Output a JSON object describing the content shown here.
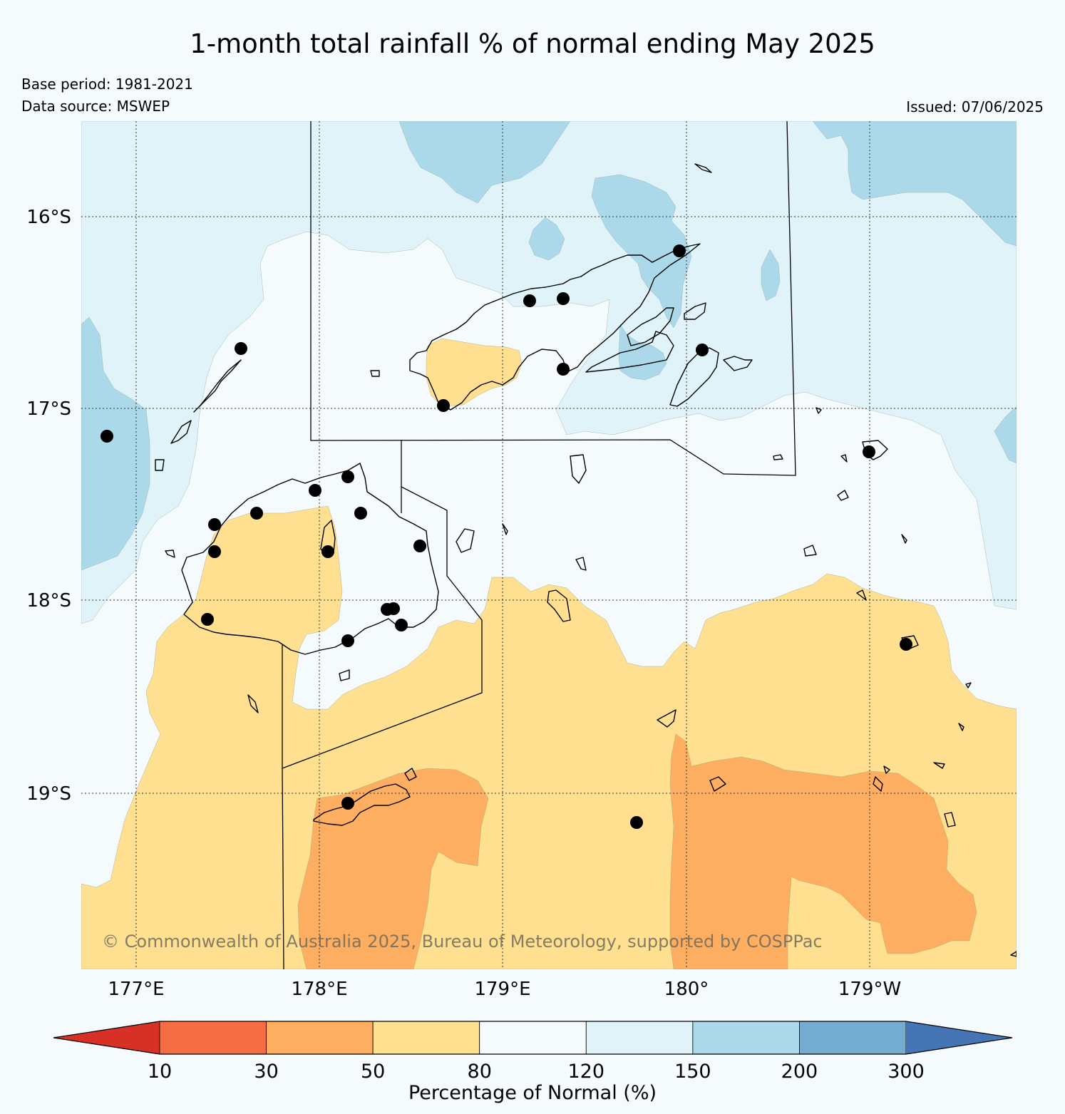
{
  "title": "1-month total rainfall % of normal ending May 2025",
  "base_period": "Base period: 1981-2021",
  "data_source": "Data source: MSWEP",
  "issued": "Issued: 07/06/2025",
  "copyright": "© Commonwealth of Australia 2025, Bureau of Meteorology, supported by COSPPac",
  "latitude_labels": [
    "16°S",
    "17°S",
    "18°S",
    "19°S"
  ],
  "longitude_labels": [
    "177°E",
    "178°E",
    "179°E",
    "180°",
    "179°W"
  ],
  "colorbar": {
    "title": "Percentage of Normal (%)",
    "tick_labels": [
      "10",
      "30",
      "50",
      "80",
      "120",
      "150",
      "200",
      "300"
    ],
    "colors": [
      "#d73027",
      "#f46d43",
      "#fdae61",
      "#fee090",
      "#f5fafd",
      "#e0f3f8",
      "#abd9e9",
      "#74add1",
      "#4575b4"
    ]
  },
  "legend_colors": {
    "dry_30_50": "#fdae61",
    "dry_50_80": "#fee090",
    "normal_80_120": "#f5fafd",
    "wet_120_150": "#e0f3f8",
    "wet_150_200": "#abd9e9",
    "station_marker": "#000000"
  }
}
